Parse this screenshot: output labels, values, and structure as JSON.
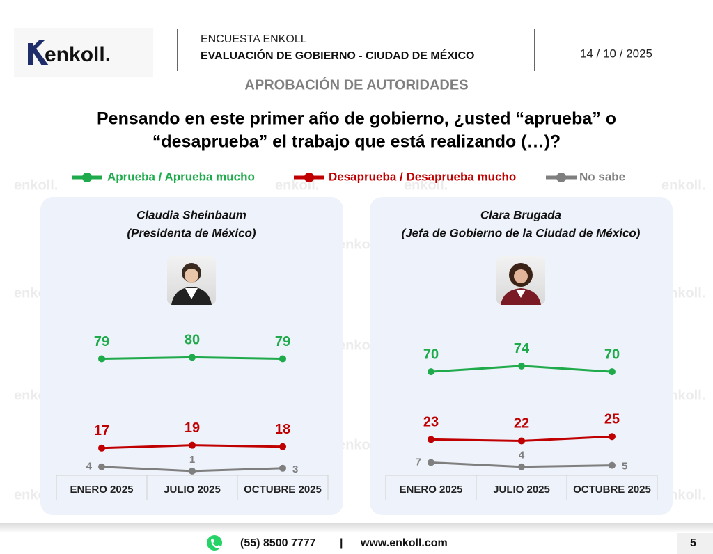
{
  "header": {
    "logo": "enkoll.",
    "survey": "ENCUESTA ENKOLL",
    "subject": "EVALUACIÓN DE GOBIERNO - CIUDAD DE MÉXICO",
    "date": "14 / 10 / 2025"
  },
  "section": "APROBACIÓN DE AUTORIDADES",
  "question": [
    "Pensando en este primer año de gobierno, ¿usted “aprueba” o",
    "“desaprueba” el trabajo que está realizando (…)?"
  ],
  "watermark": "enkoll.",
  "footer": {
    "phone": "(55) 8500 7777",
    "separator": "|",
    "website": "www.enkoll.com",
    "page": "5"
  },
  "chart_data": [
    {
      "type": "line",
      "title": "Claudia Sheinbaum",
      "subtitle": "(Presidenta de México)",
      "categories": [
        "ENERO 2025",
        "JULIO 2025",
        "OCTUBRE 2025"
      ],
      "ylim": [
        0,
        100
      ],
      "series": [
        {
          "name": "Aprueba / Aprueba mucho",
          "color": "#1faa4b",
          "values": [
            79,
            80,
            79
          ]
        },
        {
          "name": "Desaprueba / Desaprueba mucho",
          "color": "#c00000",
          "values": [
            17,
            19,
            18
          ]
        },
        {
          "name": "No sabe",
          "color": "#7f7f7f",
          "values": [
            4,
            1,
            3
          ]
        }
      ]
    },
    {
      "type": "line",
      "title": "Clara Brugada",
      "subtitle": "(Jefa de Gobierno de la Ciudad de México)",
      "categories": [
        "ENERO 2025",
        "JULIO 2025",
        "OCTUBRE 2025"
      ],
      "ylim": [
        0,
        100
      ],
      "series": [
        {
          "name": "Aprueba / Aprueba mucho",
          "color": "#1faa4b",
          "values": [
            70,
            74,
            70
          ]
        },
        {
          "name": "Desaprueba / Desaprueba mucho",
          "color": "#c00000",
          "values": [
            23,
            22,
            25
          ]
        },
        {
          "name": "No sabe",
          "color": "#7f7f7f",
          "values": [
            7,
            4,
            5
          ]
        }
      ]
    }
  ]
}
